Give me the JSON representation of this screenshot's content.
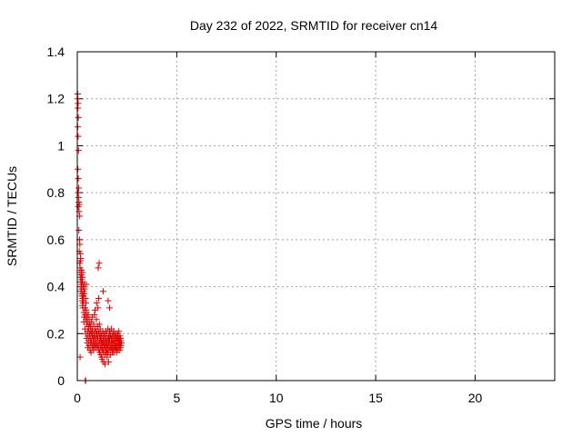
{
  "chart_data": {
    "type": "scatter",
    "title": "Day 232 of 2022, SRMTID for receiver cn14",
    "xlabel": "GPS time / hours",
    "ylabel": "SRMTID / TECUs",
    "xlim": [
      0,
      24
    ],
    "ylim": [
      0,
      1.4
    ],
    "xticks": [
      0,
      5,
      10,
      15,
      20
    ],
    "xtick_labels": [
      "0",
      "5",
      "10",
      "15",
      "20"
    ],
    "yticks": [
      0,
      0.2,
      0.4,
      0.6,
      0.8,
      1.0,
      1.2,
      1.4
    ],
    "ytick_labels": [
      "0",
      "0.2",
      "0.4",
      "0.6",
      "0.8",
      "1",
      "1.2",
      "1.4"
    ],
    "grid": true,
    "marker": "+",
    "color": "#e00000",
    "series": [
      {
        "name": "SRMTID",
        "x": [
          0.02,
          0.03,
          0.04,
          0.03,
          0.05,
          0.02,
          0.04,
          0.06,
          0.03,
          0.05,
          0.07,
          0.04,
          0.06,
          0.08,
          0.05,
          0.09,
          0.1,
          0.12,
          0.08,
          0.11,
          0.13,
          0.1,
          0.15,
          0.12,
          0.14,
          0.16,
          0.13,
          0.17,
          0.15,
          0.18,
          0.2,
          0.19,
          0.22,
          0.18,
          0.21,
          0.23,
          0.2,
          0.25,
          0.22,
          0.24,
          0.27,
          0.26,
          0.29,
          0.25,
          0.28,
          0.3,
          0.27,
          0.32,
          0.3,
          0.33,
          0.35,
          0.31,
          0.34,
          0.37,
          0.33,
          0.36,
          0.39,
          0.38,
          0.41,
          0.4,
          0.43,
          0.42,
          0.45,
          0.44,
          0.47,
          0.46,
          0.48,
          0.5,
          0.49,
          0.52,
          0.51,
          0.54,
          0.53,
          0.56,
          0.55,
          0.58,
          0.57,
          0.6,
          0.59,
          0.62,
          0.61,
          0.64,
          0.63,
          0.66,
          0.65,
          0.68,
          0.67,
          0.7,
          0.69,
          0.72,
          0.71,
          0.74,
          0.73,
          0.76,
          0.75,
          0.78,
          0.77,
          0.8,
          0.79,
          0.82,
          0.81,
          0.84,
          0.83,
          0.86,
          0.85,
          0.88,
          0.87,
          0.9,
          0.89,
          0.92,
          0.91,
          0.94,
          0.93,
          0.96,
          0.95,
          0.98,
          0.97,
          1.0,
          0.99,
          1.02,
          1.01,
          1.04,
          1.03,
          1.06,
          1.05,
          1.08,
          1.07,
          1.1,
          1.09,
          1.12,
          1.11,
          1.14,
          1.13,
          1.16,
          1.15,
          1.18,
          1.17,
          1.2,
          1.19,
          1.22,
          1.21,
          1.24,
          1.23,
          1.26,
          1.25,
          1.28,
          1.27,
          1.3,
          1.29,
          1.32,
          1.31,
          1.34,
          1.33,
          1.36,
          1.35,
          1.38,
          1.37,
          1.4,
          1.39,
          1.42,
          1.41,
          1.44,
          1.43,
          1.46,
          1.45,
          1.48,
          1.47,
          1.5,
          1.49,
          1.52,
          1.51,
          1.54,
          1.53,
          1.56,
          1.55,
          1.58,
          1.57,
          1.6,
          1.59,
          1.62,
          1.61,
          1.64,
          1.63,
          1.66,
          1.65,
          1.68,
          1.67,
          1.7,
          1.69,
          1.72,
          1.71,
          1.74,
          1.73,
          1.76,
          1.75,
          1.78,
          1.77,
          1.8,
          1.79,
          1.82,
          1.81,
          1.84,
          1.83,
          1.86,
          1.85,
          1.88,
          1.87,
          1.9,
          1.89,
          1.92,
          1.91,
          1.94,
          1.93,
          1.96,
          1.95,
          1.98,
          1.97,
          2.0,
          1.99,
          2.02,
          2.01,
          2.04,
          2.03,
          2.06,
          2.05,
          2.08,
          2.07,
          2.1,
          2.09,
          2.12,
          2.11,
          2.14,
          2.13,
          2.16,
          2.15,
          2.18,
          2.17,
          2.2,
          2.19,
          2.22,
          0.4,
          0.42,
          0.45,
          1.05,
          1.1,
          1.3,
          1.55,
          1.62,
          0.26,
          0.31,
          0.14
        ],
        "y": [
          1.22,
          1.2,
          1.18,
          1.16,
          1.12,
          1.08,
          1.04,
          0.98,
          0.9,
          0.86,
          0.82,
          0.8,
          0.78,
          0.76,
          0.74,
          0.72,
          0.75,
          0.7,
          0.64,
          0.6,
          0.58,
          0.55,
          0.54,
          0.5,
          0.48,
          0.51,
          0.46,
          0.52,
          0.44,
          0.42,
          0.47,
          0.4,
          0.43,
          0.38,
          0.41,
          0.36,
          0.45,
          0.34,
          0.39,
          0.37,
          0.35,
          0.44,
          0.33,
          0.42,
          0.31,
          0.4,
          0.46,
          0.38,
          0.36,
          0.29,
          0.41,
          0.34,
          0.27,
          0.39,
          0.25,
          0.37,
          0.31,
          0.22,
          0.35,
          0.28,
          0.33,
          0.2,
          0.3,
          0.26,
          0.18,
          0.29,
          0.24,
          0.16,
          0.27,
          0.21,
          0.25,
          0.19,
          0.14,
          0.23,
          0.28,
          0.17,
          0.22,
          0.26,
          0.15,
          0.2,
          0.24,
          0.13,
          0.19,
          0.23,
          0.18,
          0.21,
          0.16,
          0.25,
          0.12,
          0.2,
          0.17,
          0.22,
          0.15,
          0.19,
          0.27,
          0.14,
          0.21,
          0.18,
          0.16,
          0.24,
          0.13,
          0.2,
          0.17,
          0.28,
          0.15,
          0.22,
          0.19,
          0.16,
          0.3,
          0.18,
          0.14,
          0.21,
          0.17,
          0.26,
          0.15,
          0.2,
          0.33,
          0.16,
          0.19,
          0.23,
          0.14,
          0.31,
          0.18,
          0.15,
          0.21,
          0.13,
          0.35,
          0.17,
          0.2,
          0.12,
          0.24,
          0.16,
          0.19,
          0.14,
          0.22,
          0.11,
          0.18,
          0.15,
          0.2,
          0.1,
          0.17,
          0.13,
          0.19,
          0.16,
          0.09,
          0.21,
          0.14,
          0.18,
          0.12,
          0.08,
          0.16,
          0.2,
          0.13,
          0.17,
          0.15,
          0.11,
          0.19,
          0.14,
          0.07,
          0.18,
          0.16,
          0.12,
          0.21,
          0.15,
          0.17,
          0.13,
          0.2,
          0.1,
          0.16,
          0.18,
          0.14,
          0.22,
          0.12,
          0.17,
          0.15,
          0.19,
          0.08,
          0.16,
          0.13,
          0.21,
          0.18,
          0.14,
          0.17,
          0.11,
          0.2,
          0.15,
          0.19,
          0.16,
          0.13,
          0.18,
          0.22,
          0.14,
          0.17,
          0.12,
          0.19,
          0.16,
          0.15,
          0.2,
          0.13,
          0.18,
          0.17,
          0.14,
          0.21,
          0.16,
          0.12,
          0.19,
          0.15,
          0.18,
          0.14,
          0.17,
          0.2,
          0.13,
          0.16,
          0.19,
          0.15,
          0.18,
          0.12,
          0.17,
          0.14,
          0.2,
          0.16,
          0.13,
          0.18,
          0.15,
          0.19,
          0.17,
          0.14,
          0.16,
          0.21,
          0.15,
          0.18,
          0.13,
          0.17,
          0.16,
          0.19,
          0.14,
          0.18,
          0.15,
          0.17,
          0.16,
          0.0,
          0.0,
          0.41,
          0.48,
          0.5,
          0.38,
          0.34,
          0.31,
          0.32,
          0.36,
          0.1
        ]
      }
    ]
  }
}
